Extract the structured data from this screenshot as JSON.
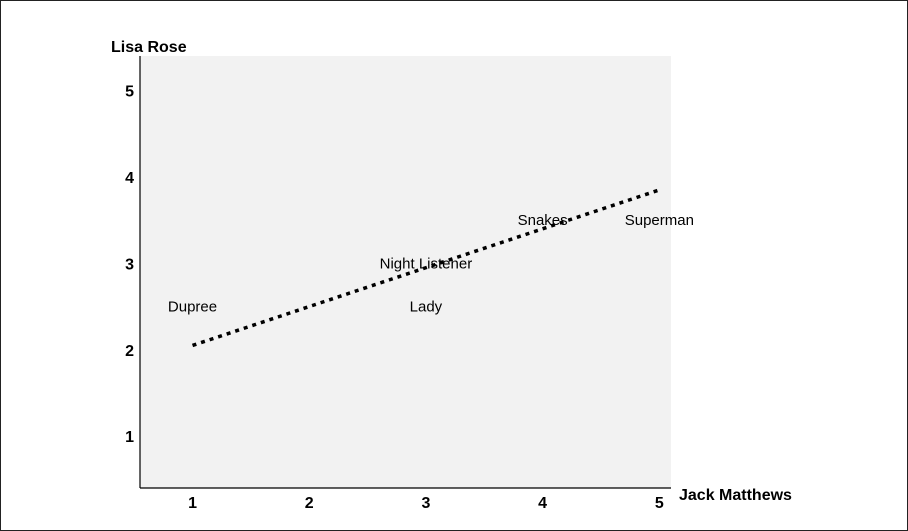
{
  "chart_data": {
    "type": "scatter",
    "title": "",
    "xlabel": "Jack Matthews",
    "ylabel": "Lisa Rose",
    "xlim": [
      0.55,
      5.1
    ],
    "ylim": [
      0.4,
      5.4
    ],
    "xticks": [
      1,
      2,
      3,
      4,
      5
    ],
    "yticks": [
      1,
      2,
      3,
      4,
      5
    ],
    "grid": false,
    "points": [
      {
        "label": "Dupree",
        "x": 1,
        "y": 2.5
      },
      {
        "label": "Night Listener",
        "x": 3,
        "y": 3
      },
      {
        "label": "Lady",
        "x": 3,
        "y": 2.5
      },
      {
        "label": "Snakes",
        "x": 4,
        "y": 3.5
      },
      {
        "label": "Superman",
        "x": 5,
        "y": 3.5
      }
    ],
    "trendline": {
      "style": "dotted",
      "x": [
        1,
        5
      ],
      "y": [
        2.05,
        3.85
      ]
    }
  }
}
